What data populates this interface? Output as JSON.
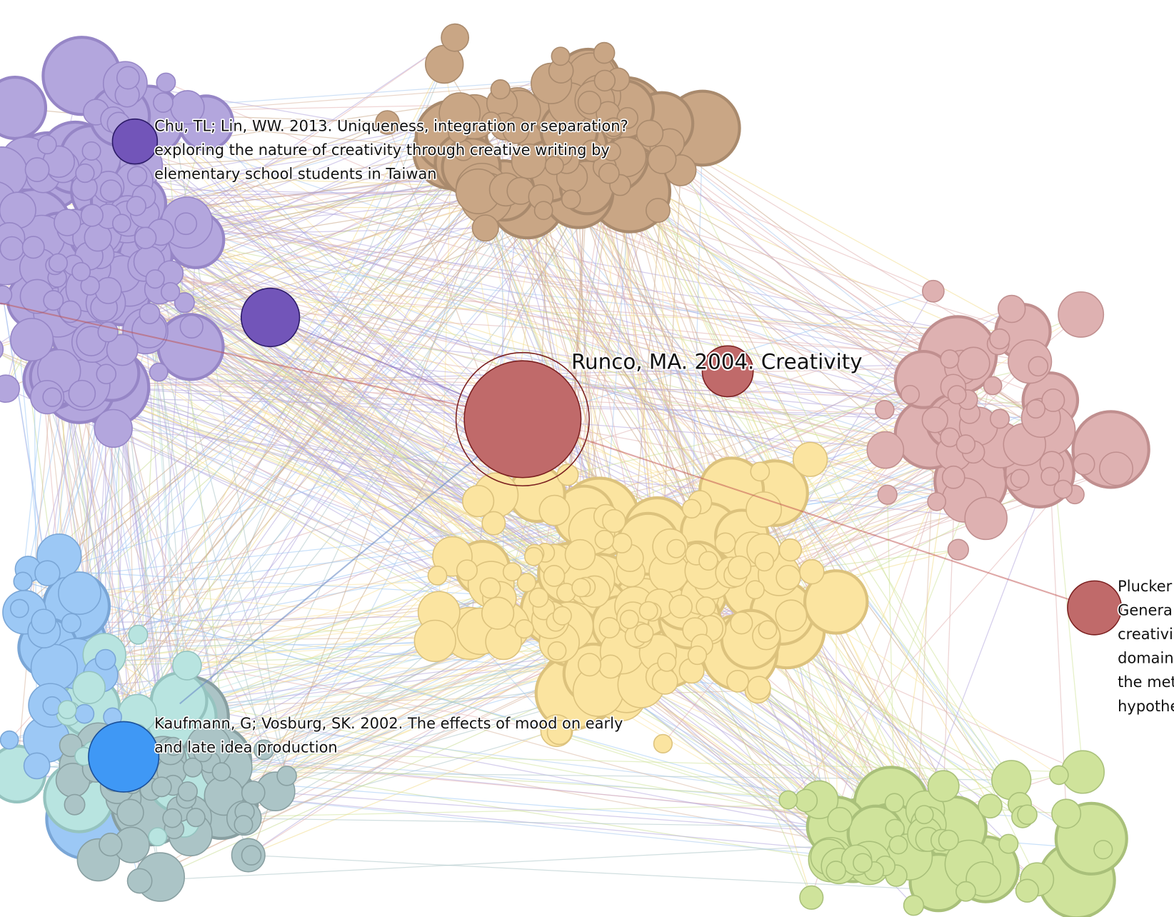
{
  "labels": {
    "chu": {
      "lines": [
        "Chu, TL; Lin, WW. 2013. Uniqueness, integration or separation?",
        "exploring the nature of creativity through creative writing by",
        "elementary school students in Taiwan"
      ]
    },
    "runco": {
      "text": "Runco, MA. 2004. Creativity"
    },
    "kaufmann": {
      "lines": [
        "Kaufmann, G; Vosburg, SK. 2002. The effects of mood on early",
        "and late idea production"
      ]
    },
    "plucker": {
      "lines": [
        "Plucker",
        "Genera",
        "creativi",
        "domain",
        "the met",
        "hypothe"
      ]
    }
  }
}
